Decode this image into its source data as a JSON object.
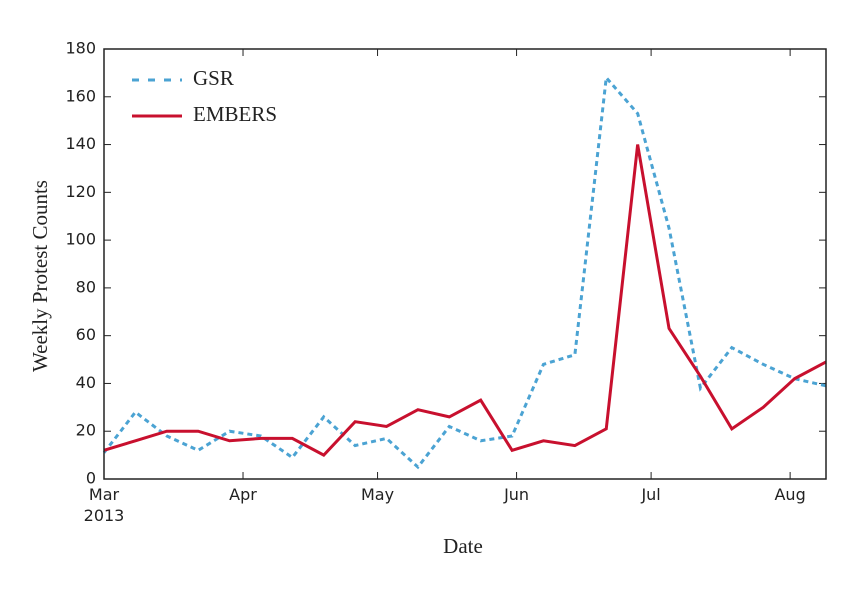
{
  "chart_data": {
    "type": "line",
    "xlabel": "Date",
    "ylabel": "Weekly Protest Counts",
    "x": [
      0,
      7,
      14,
      21,
      28,
      35,
      42,
      49,
      56,
      63,
      70,
      77,
      84,
      91,
      98,
      105,
      112,
      119,
      126,
      133,
      140,
      147,
      154,
      161
    ],
    "series": [
      {
        "name": "GSR",
        "color": "#4ba3d3",
        "dashed": true,
        "values": [
          11,
          28,
          18,
          12,
          20,
          18,
          9,
          26,
          14,
          17,
          5,
          22,
          16,
          18,
          48,
          52,
          168,
          153,
          105,
          38,
          55,
          48,
          42,
          39
        ]
      },
      {
        "name": "EMBERS",
        "color": "#c8102e",
        "dashed": false,
        "values": [
          12,
          16,
          20,
          20,
          16,
          17,
          17,
          10,
          24,
          22,
          29,
          26,
          33,
          12,
          16,
          14,
          21,
          140,
          63,
          43,
          21,
          30,
          42,
          49
        ]
      }
    ],
    "xlim": [
      0,
      161
    ],
    "xticks": [
      {
        "value": 0,
        "label": "Mar\n2013"
      },
      {
        "value": 31,
        "label": "Apr"
      },
      {
        "value": 61,
        "label": "May"
      },
      {
        "value": 92,
        "label": "Jun"
      },
      {
        "value": 122,
        "label": "Jul"
      },
      {
        "value": 153,
        "label": "Aug"
      }
    ],
    "ylim": [
      0,
      180
    ],
    "yticks": [
      0,
      20,
      40,
      60,
      80,
      100,
      120,
      140,
      160,
      180
    ],
    "legend": "upper left"
  }
}
